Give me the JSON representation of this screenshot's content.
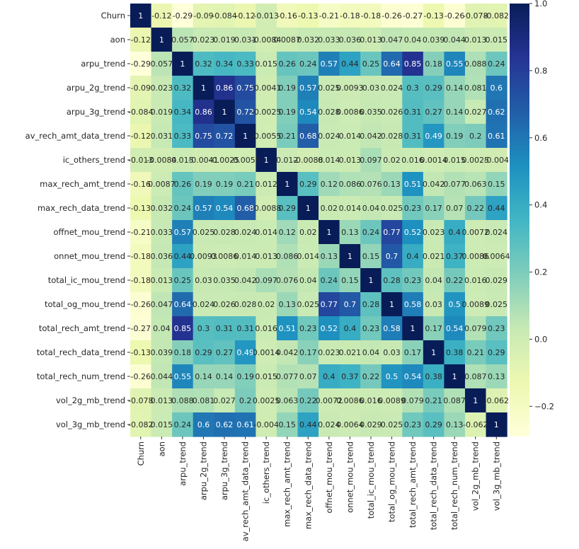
{
  "chart_data": {
    "type": "heatmap",
    "title": "",
    "xlabel": "",
    "ylabel": "",
    "colormap": "YlGnBu",
    "vmin": -0.29,
    "vmax": 1.0,
    "labels": [
      "Churn",
      "aon",
      "arpu_trend",
      "arpu_2g_trend",
      "arpu_3g_trend",
      "av_rech_amt_data_trend",
      "ic_others_trend",
      "max_rech_amt_trend",
      "max_rech_data_trend",
      "offnet_mou_trend",
      "onnet_mou_trend",
      "total_ic_mou_trend",
      "total_og_mou_trend",
      "total_rech_amt_trend",
      "total_rech_data_trend",
      "total_rech_num_trend",
      "vol_2g_mb_trend",
      "vol_3g_mb_trend"
    ],
    "values": [
      [
        1,
        -0.12,
        -0.29,
        -0.09,
        -0.084,
        -0.12,
        -0.013,
        -0.16,
        -0.13,
        -0.21,
        -0.18,
        -0.18,
        -0.26,
        -0.27,
        -0.13,
        -0.26,
        -0.078,
        -0.082
      ],
      [
        -0.12,
        1,
        0.057,
        0.023,
        0.019,
        0.031,
        -0.0084,
        0.0087,
        0.032,
        0.033,
        0.036,
        0.013,
        0.047,
        0.04,
        0.039,
        0.044,
        0.013,
        0.015
      ],
      [
        -0.29,
        0.057,
        1,
        0.32,
        0.34,
        0.33,
        0.015,
        0.26,
        0.24,
        0.57,
        0.44,
        0.25,
        0.64,
        0.85,
        0.18,
        0.55,
        0.088,
        0.24
      ],
      [
        -0.09,
        0.023,
        0.32,
        1,
        0.86,
        0.75,
        -0.0041,
        0.19,
        0.57,
        0.025,
        0.0093,
        0.03,
        0.024,
        0.3,
        0.29,
        0.14,
        0.081,
        0.6
      ],
      [
        -0.084,
        0.019,
        0.34,
        0.86,
        1,
        0.72,
        -0.0025,
        0.19,
        0.54,
        0.028,
        0.0086,
        0.035,
        0.026,
        0.31,
        0.27,
        0.14,
        0.027,
        0.62
      ],
      [
        -0.12,
        0.031,
        0.33,
        0.75,
        0.72,
        1,
        -0.0055,
        0.21,
        0.68,
        0.024,
        0.014,
        0.042,
        0.028,
        0.31,
        0.49,
        0.19,
        0.2,
        0.61
      ],
      [
        -0.013,
        -0.0084,
        0.015,
        -0.0041,
        -0.0025,
        -0.0055,
        1,
        0.012,
        -0.0088,
        0.014,
        0.013,
        0.097,
        0.02,
        0.016,
        0.0014,
        0.015,
        0.0025,
        -0.004
      ],
      [
        -0.16,
        0.0087,
        0.26,
        0.19,
        0.19,
        0.21,
        0.012,
        1,
        0.29,
        0.12,
        0.086,
        0.076,
        0.13,
        0.51,
        0.042,
        0.077,
        0.063,
        0.15
      ],
      [
        -0.13,
        0.032,
        0.24,
        0.57,
        0.54,
        0.68,
        -0.0088,
        0.29,
        1,
        0.02,
        0.014,
        0.04,
        0.025,
        0.23,
        0.17,
        0.07,
        0.22,
        0.44
      ],
      [
        -0.21,
        0.033,
        0.57,
        0.025,
        0.028,
        0.024,
        0.014,
        0.12,
        0.02,
        1,
        0.13,
        0.24,
        0.77,
        0.52,
        0.023,
        0.4,
        0.0072,
        0.024
      ],
      [
        -0.18,
        0.036,
        0.44,
        0.0093,
        0.0086,
        0.014,
        0.013,
        0.086,
        0.014,
        0.13,
        1,
        0.15,
        0.7,
        0.4,
        0.021,
        0.37,
        0.0086,
        0.0064
      ],
      [
        -0.18,
        0.013,
        0.25,
        0.03,
        0.035,
        0.042,
        0.097,
        0.076,
        0.04,
        0.24,
        0.15,
        1,
        0.28,
        0.23,
        0.04,
        0.22,
        0.016,
        0.029
      ],
      [
        -0.26,
        0.047,
        0.64,
        0.024,
        0.026,
        0.028,
        0.02,
        0.13,
        0.025,
        0.77,
        0.7,
        0.28,
        1,
        0.58,
        0.03,
        0.5,
        0.0089,
        0.025
      ],
      [
        -0.27,
        0.04,
        0.85,
        0.3,
        0.31,
        0.31,
        0.016,
        0.51,
        0.23,
        0.52,
        0.4,
        0.23,
        0.58,
        1,
        0.17,
        0.54,
        0.079,
        0.23
      ],
      [
        -0.13,
        0.039,
        0.18,
        0.29,
        0.27,
        0.49,
        0.0014,
        0.042,
        0.17,
        0.023,
        0.021,
        0.04,
        0.03,
        0.17,
        1,
        0.38,
        0.21,
        0.29
      ],
      [
        -0.26,
        0.044,
        0.55,
        0.14,
        0.14,
        0.19,
        0.015,
        0.077,
        0.07,
        0.4,
        0.37,
        0.22,
        0.5,
        0.54,
        0.38,
        1,
        0.087,
        0.13
      ],
      [
        -0.078,
        0.013,
        0.088,
        0.081,
        0.027,
        0.2,
        0.0025,
        0.063,
        0.22,
        0.0072,
        0.0086,
        0.016,
        0.0089,
        0.079,
        0.21,
        0.087,
        1,
        -0.062
      ],
      [
        -0.082,
        0.015,
        0.24,
        0.6,
        0.62,
        0.61,
        -0.004,
        0.15,
        0.44,
        0.024,
        0.0064,
        0.029,
        0.025,
        0.23,
        0.29,
        0.13,
        -0.062,
        1
      ]
    ],
    "annotations": [
      [
        "1",
        "-0.12",
        "-0.29",
        "-0.09",
        "-0.084",
        "-0.12",
        "-0.013",
        "-0.16",
        "-0.13",
        "-0.21",
        "-0.18",
        "-0.18",
        "-0.26",
        "-0.27",
        "-0.13",
        "-0.26",
        "-0.078",
        "-0.082"
      ],
      [
        "-0.12",
        "1",
        "0.057",
        "0.023",
        "0.019",
        "0.031",
        "-0.0084",
        "0.0087",
        "0.032",
        "0.033",
        "0.036",
        "0.013",
        "0.047",
        "0.04",
        "0.039",
        "0.044",
        "0.013",
        "0.015"
      ],
      [
        "-0.29",
        "0.057",
        "1",
        "0.32",
        "0.34",
        "0.33",
        "0.015",
        "0.26",
        "0.24",
        "0.57",
        "0.44",
        "0.25",
        "0.64",
        "0.85",
        "0.18",
        "0.55",
        "0.088",
        "0.24"
      ],
      [
        "-0.09",
        "0.023",
        "0.32",
        "1",
        "0.86",
        "0.75",
        "-0.0041",
        "0.19",
        "0.57",
        "0.025",
        "0.0093",
        "0.03",
        "0.024",
        "0.3",
        "0.29",
        "0.14",
        "0.081",
        "0.6"
      ],
      [
        "-0.084",
        "0.019",
        "0.34",
        "0.86",
        "1",
        "0.72",
        "-0.0025",
        "0.19",
        "0.54",
        "0.028",
        "0.0086",
        "0.035",
        "0.026",
        "0.31",
        "0.27",
        "0.14",
        "0.027",
        "0.62"
      ],
      [
        "-0.12",
        "0.031",
        "0.33",
        "0.75",
        "0.72",
        "1",
        "-0.0055",
        "0.21",
        "0.68",
        "0.024",
        "0.014",
        "0.042",
        "0.028",
        "0.31",
        "0.49",
        "0.19",
        "0.2",
        "0.61"
      ],
      [
        "-0.013",
        "-0.0084",
        "0.015",
        "-0.0041",
        "-0.0025",
        "-0.0055",
        "1",
        "0.012",
        "-0.0088",
        "0.014",
        "0.013",
        "0.097",
        "0.02",
        "0.016",
        "0.0014",
        "0.015",
        "0.0025",
        "-0.004"
      ],
      [
        "-0.16",
        "0.0087",
        "0.26",
        "0.19",
        "0.19",
        "0.21",
        "0.012",
        "1",
        "0.29",
        "0.12",
        "0.086",
        "0.076",
        "0.13",
        "0.51",
        "0.042",
        "0.077",
        "0.063",
        "0.15"
      ],
      [
        "-0.13",
        "0.032",
        "0.24",
        "0.57",
        "0.54",
        "0.68",
        "-0.0088",
        "0.29",
        "1",
        "0.02",
        "0.014",
        "0.04",
        "0.025",
        "0.23",
        "0.17",
        "0.07",
        "0.22",
        "0.44"
      ],
      [
        "-0.21",
        "0.033",
        "0.57",
        "0.025",
        "0.028",
        "0.024",
        "0.014",
        "0.12",
        "0.02",
        "1",
        "0.13",
        "0.24",
        "0.77",
        "0.52",
        "0.023",
        "0.4",
        "0.0072",
        "0.024"
      ],
      [
        "-0.18",
        "0.036",
        "0.44",
        "0.0093",
        "0.0086",
        "0.014",
        "0.013",
        "0.086",
        "0.014",
        "0.13",
        "1",
        "0.15",
        "0.7",
        "0.4",
        "0.021",
        "0.37",
        "0.0086",
        "0.0064"
      ],
      [
        "-0.18",
        "0.013",
        "0.25",
        "0.03",
        "0.035",
        "0.042",
        "0.097",
        "0.076",
        "0.04",
        "0.24",
        "0.15",
        "1",
        "0.28",
        "0.23",
        "0.04",
        "0.22",
        "0.016",
        "0.029"
      ],
      [
        "-0.26",
        "0.047",
        "0.64",
        "0.024",
        "0.026",
        "0.028",
        "0.02",
        "0.13",
        "0.025",
        "0.77",
        "0.7",
        "0.28",
        "1",
        "0.58",
        "0.03",
        "0.5",
        "0.0089",
        "0.025"
      ],
      [
        "-0.27",
        "0.04",
        "0.85",
        "0.3",
        "0.31",
        "0.31",
        "0.016",
        "0.51",
        "0.23",
        "0.52",
        "0.4",
        "0.23",
        "0.58",
        "1",
        "0.17",
        "0.54",
        "0.079",
        "0.23"
      ],
      [
        "-0.13",
        "0.039",
        "0.18",
        "0.29",
        "0.27",
        "0.49",
        "0.0014",
        "0.042",
        "0.17",
        "0.023",
        "0.021",
        "0.04",
        "0.03",
        "0.17",
        "1",
        "0.38",
        "0.21",
        "0.29"
      ],
      [
        "-0.26",
        "0.044",
        "0.55",
        "0.14",
        "0.14",
        "0.19",
        "0.015",
        "0.077",
        "0.07",
        "0.4",
        "0.37",
        "0.22",
        "0.5",
        "0.54",
        "0.38",
        "1",
        "0.087",
        "0.13"
      ],
      [
        "-0.078",
        "0.013",
        "0.088",
        "0.081",
        "0.027",
        "0.2",
        "0.0025",
        "0.063",
        "0.22",
        "0.0072",
        "0.0086",
        "0.016",
        "0.0089",
        "0.079",
        "0.21",
        "0.087",
        "1",
        "-0.062"
      ],
      [
        "-0.082",
        "0.015",
        "0.24",
        "0.6",
        "0.62",
        "0.61",
        "-0.004",
        "0.15",
        "0.44",
        "0.024",
        "0.0064",
        "0.029",
        "0.025",
        "0.23",
        "0.29",
        "0.13",
        "-0.062",
        "1"
      ]
    ],
    "colorbar": {
      "ticks": [
        1.0,
        0.8,
        0.6,
        0.4,
        0.2,
        0.0,
        -0.2
      ],
      "tick_labels": [
        "1.0",
        "0.8",
        "0.6",
        "0.4",
        "0.2",
        "0.0",
        "−0.2"
      ]
    }
  }
}
